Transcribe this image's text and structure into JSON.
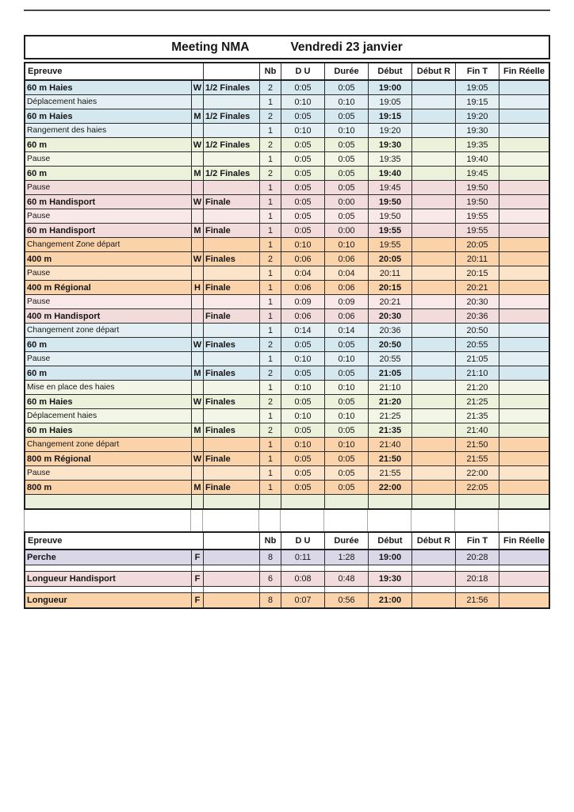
{
  "title": {
    "left": "Meeting  NMA",
    "right": "Vendredi 23 janvier"
  },
  "header": {
    "epreuve": "Epreuve",
    "round_spacer": "",
    "nb": "Nb",
    "du": "D U",
    "duree": "Durée",
    "debut": "Début",
    "debut_r": "Début R",
    "fin_t": "Fin T",
    "fin_reelle": "Fin Réelle"
  },
  "colors": {
    "blue": "#d5e8ef",
    "blueLight": "#e4eff3",
    "green": "#ecf1dc",
    "greenLight": "#f3f5e7",
    "pink": "#f2dcdb",
    "pinkLight": "#f8e9e8",
    "orange": "#fbd3ab",
    "orangeLight": "#fce4ca",
    "lavender": "#dad7e6",
    "emptyGreen": "#eaf0db",
    "white": "#ffffff"
  },
  "table1": {
    "rows": [
      {
        "type": "event",
        "color": "blue",
        "name": "60 m Haies",
        "gender": "W",
        "round": "1/2 Finales",
        "nb": "2",
        "du": "0:05",
        "duree": "0:05",
        "debut": "19:00",
        "debut_r": "",
        "fin_t": "19:05",
        "fin_reelle": ""
      },
      {
        "type": "transition",
        "color": "blueLight",
        "name": "Déplacement haies",
        "gender": "",
        "round": "",
        "nb": "1",
        "du": "0:10",
        "duree": "0:10",
        "debut": "19:05",
        "debut_r": "",
        "fin_t": "19:15",
        "fin_reelle": ""
      },
      {
        "type": "event",
        "color": "blue",
        "name": "60 m Haies",
        "gender": "M",
        "round": "1/2 Finales",
        "nb": "2",
        "du": "0:05",
        "duree": "0:05",
        "debut": "19:15",
        "debut_r": "",
        "fin_t": "19:20",
        "fin_reelle": ""
      },
      {
        "type": "transition",
        "color": "blueLight",
        "name": "Rangement des haies",
        "gender": "",
        "round": "",
        "nb": "1",
        "du": "0:10",
        "duree": "0:10",
        "debut": "19:20",
        "debut_r": "",
        "fin_t": "19:30",
        "fin_reelle": ""
      },
      {
        "type": "event",
        "color": "green",
        "name": "60 m",
        "gender": "W",
        "round": "1/2 Finales",
        "nb": "2",
        "du": "0:05",
        "duree": "0:05",
        "debut": "19:30",
        "debut_r": "",
        "fin_t": "19:35",
        "fin_reelle": ""
      },
      {
        "type": "transition",
        "color": "greenLight",
        "name": "Pause",
        "gender": "",
        "round": "",
        "nb": "1",
        "du": "0:05",
        "duree": "0:05",
        "debut": "19:35",
        "debut_r": "",
        "fin_t": "19:40",
        "fin_reelle": ""
      },
      {
        "type": "event",
        "color": "green",
        "name": "60 m",
        "gender": "M",
        "round": "1/2 Finales",
        "nb": "2",
        "du": "0:05",
        "duree": "0:05",
        "debut": "19:40",
        "debut_r": "",
        "fin_t": "19:45",
        "fin_reelle": ""
      },
      {
        "type": "transition",
        "color": "pink",
        "name": "Pause",
        "gender": "",
        "round": "",
        "nb": "1",
        "du": "0:05",
        "duree": "0:05",
        "debut": "19:45",
        "debut_r": "",
        "fin_t": "19:50",
        "fin_reelle": ""
      },
      {
        "type": "event",
        "color": "pink",
        "name": "60 m Handisport",
        "gender": "W",
        "round": "Finale",
        "nb": "1",
        "du": "0:05",
        "duree": "0:00",
        "debut": "19:50",
        "debut_r": "",
        "fin_t": "19:50",
        "fin_reelle": ""
      },
      {
        "type": "transition",
        "color": "pinkLight",
        "name": "Pause",
        "gender": "",
        "round": "",
        "nb": "1",
        "du": "0:05",
        "duree": "0:05",
        "debut": "19:50",
        "debut_r": "",
        "fin_t": "19:55",
        "fin_reelle": ""
      },
      {
        "type": "event",
        "color": "pink",
        "name": "60 m Handisport",
        "gender": "M",
        "round": "Finale",
        "nb": "1",
        "du": "0:05",
        "duree": "0:00",
        "debut": "19:55",
        "debut_r": "",
        "fin_t": "19:55",
        "fin_reelle": ""
      },
      {
        "type": "transition",
        "color": "orange",
        "name": "Changement Zone départ",
        "gender": "",
        "round": "",
        "nb": "1",
        "du": "0:10",
        "duree": "0:10",
        "debut": "19:55",
        "debut_r": "",
        "fin_t": "20:05",
        "fin_reelle": ""
      },
      {
        "type": "event",
        "color": "orange",
        "name": "400 m",
        "gender": "W",
        "round": "Finales",
        "nb": "2",
        "du": "0:06",
        "duree": "0:06",
        "debut": "20:05",
        "debut_r": "",
        "fin_t": "20:11",
        "fin_reelle": ""
      },
      {
        "type": "transition",
        "color": "orangeLight",
        "name": "Pause",
        "gender": "",
        "round": "",
        "nb": "1",
        "du": "0:04",
        "duree": "0:04",
        "debut": "20:11",
        "debut_r": "",
        "fin_t": "20:15",
        "fin_reelle": ""
      },
      {
        "type": "event",
        "color": "orange",
        "name": "400 m Régional",
        "gender": "H",
        "round": "Finale",
        "nb": "1",
        "du": "0:06",
        "duree": "0:06",
        "debut": "20:15",
        "debut_r": "",
        "fin_t": "20:21",
        "fin_reelle": ""
      },
      {
        "type": "transition",
        "color": "pinkLight",
        "name": "Pause",
        "gender": "",
        "round": "",
        "nb": "1",
        "du": "0:09",
        "duree": "0:09",
        "debut": "20:21",
        "debut_r": "",
        "fin_t": "20:30",
        "fin_reelle": ""
      },
      {
        "type": "event",
        "color": "pink",
        "name": "400 m Handisport",
        "gender": "",
        "round": "Finale",
        "nb": "1",
        "du": "0:06",
        "duree": "0:06",
        "debut": "20:30",
        "debut_r": "",
        "fin_t": "20:36",
        "fin_reelle": ""
      },
      {
        "type": "transition",
        "color": "blueLight",
        "name": "Changement zone départ",
        "gender": "",
        "round": "",
        "nb": "1",
        "du": "0:14",
        "duree": "0:14",
        "debut": "20:36",
        "debut_r": "",
        "fin_t": "20:50",
        "fin_reelle": ""
      },
      {
        "type": "event",
        "color": "blue",
        "name": "60 m",
        "gender": "W",
        "round": "Finales",
        "nb": "2",
        "du": "0:05",
        "duree": "0:05",
        "debut": "20:50",
        "debut_r": "",
        "fin_t": "20:55",
        "fin_reelle": ""
      },
      {
        "type": "transition",
        "color": "blueLight",
        "name": "Pause",
        "gender": "",
        "round": "",
        "nb": "1",
        "du": "0:10",
        "duree": "0:10",
        "debut": "20:55",
        "debut_r": "",
        "fin_t": "21:05",
        "fin_reelle": ""
      },
      {
        "type": "event",
        "color": "blue",
        "name": "60 m",
        "gender": "M",
        "round": "Finales",
        "nb": "2",
        "du": "0:05",
        "duree": "0:05",
        "debut": "21:05",
        "debut_r": "",
        "fin_t": "21:10",
        "fin_reelle": ""
      },
      {
        "type": "transition",
        "color": "greenLight",
        "name": "Mise en place des haies",
        "gender": "",
        "round": "",
        "nb": "1",
        "du": "0:10",
        "duree": "0:10",
        "debut": "21:10",
        "debut_r": "",
        "fin_t": "21:20",
        "fin_reelle": ""
      },
      {
        "type": "event",
        "color": "green",
        "name": "60 m Haies",
        "gender": "W",
        "round": "Finales",
        "nb": "2",
        "du": "0:05",
        "duree": "0:05",
        "debut": "21:20",
        "debut_r": "",
        "fin_t": "21:25",
        "fin_reelle": ""
      },
      {
        "type": "transition",
        "color": "greenLight",
        "name": "Déplacement haies",
        "gender": "",
        "round": "",
        "nb": "1",
        "du": "0:10",
        "duree": "0:10",
        "debut": "21:25",
        "debut_r": "",
        "fin_t": "21:35",
        "fin_reelle": ""
      },
      {
        "type": "event",
        "color": "green",
        "name": "60 m Haies",
        "gender": "M",
        "round": "Finales",
        "nb": "2",
        "du": "0:05",
        "duree": "0:05",
        "debut": "21:35",
        "debut_r": "",
        "fin_t": "21:40",
        "fin_reelle": ""
      },
      {
        "type": "transition",
        "color": "orange",
        "name": "Changement zone départ",
        "gender": "",
        "round": "",
        "nb": "1",
        "du": "0:10",
        "duree": "0:10",
        "debut": "21:40",
        "debut_r": "",
        "fin_t": "21:50",
        "fin_reelle": ""
      },
      {
        "type": "event",
        "color": "orange",
        "name": "800 m Régional",
        "gender": "W",
        "round": "Finale",
        "nb": "1",
        "du": "0:05",
        "duree": "0:05",
        "debut": "21:50",
        "debut_r": "",
        "fin_t": "21:55",
        "fin_reelle": ""
      },
      {
        "type": "transition",
        "color": "orangeLight",
        "name": "Pause",
        "gender": "",
        "round": "",
        "nb": "1",
        "du": "0:05",
        "duree": "0:05",
        "debut": "21:55",
        "debut_r": "",
        "fin_t": "22:00",
        "fin_reelle": ""
      },
      {
        "type": "event",
        "color": "orange",
        "name": "800 m",
        "gender": "M",
        "round": "Finale",
        "nb": "1",
        "du": "0:05",
        "duree": "0:05",
        "debut": "22:00",
        "debut_r": "",
        "fin_t": "22:05",
        "fin_reelle": ""
      },
      {
        "type": "empty",
        "color": "emptyGreen",
        "name": "",
        "gender": "",
        "round": "",
        "nb": "",
        "du": "",
        "duree": "",
        "debut": "",
        "debut_r": "",
        "fin_t": "",
        "fin_reelle": ""
      }
    ]
  },
  "table2": {
    "rows": [
      {
        "type": "event",
        "color": "lavender",
        "name": "Perche",
        "gender": "F",
        "round": "",
        "nb": "8",
        "du": "0:11",
        "duree": "1:28",
        "debut": "19:00",
        "debut_r": "",
        "fin_t": "20:28",
        "fin_reelle": ""
      },
      {
        "type": "separator"
      },
      {
        "type": "event",
        "color": "pink",
        "name": "Longueur Handisport",
        "gender": "F",
        "round": "",
        "nb": "6",
        "du": "0:08",
        "duree": "0:48",
        "debut": "19:30",
        "debut_r": "",
        "fin_t": "20:18",
        "fin_reelle": ""
      },
      {
        "type": "separator"
      },
      {
        "type": "event",
        "color": "orange",
        "name": "Longueur",
        "gender": "F",
        "round": "",
        "nb": "8",
        "du": "0:07",
        "duree": "0:56",
        "debut": "21:00",
        "debut_r": "",
        "fin_t": "21:56",
        "fin_reelle": ""
      }
    ]
  }
}
